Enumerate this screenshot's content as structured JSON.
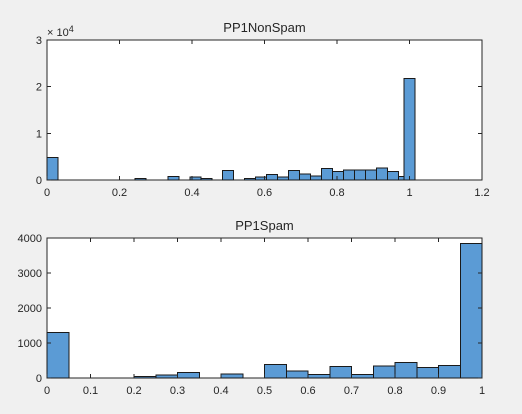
{
  "chart_data": [
    {
      "type": "bar",
      "title": "PP1NonSpam",
      "xlim": [
        0,
        1.2
      ],
      "ylim": [
        0,
        30000
      ],
      "x_ticks": [
        "0",
        "0.2",
        "0.4",
        "0.6",
        "0.8",
        "1",
        "1.2"
      ],
      "x_tick_values": [
        0,
        0.2,
        0.4,
        0.6,
        0.8,
        1.0,
        1.2
      ],
      "y_ticks": [
        "0",
        "1",
        "2",
        "3"
      ],
      "y_tick_values": [
        0,
        10000,
        20000,
        30000
      ],
      "y_exponent": "× 10^4",
      "bin_width": 0.0303,
      "bins": [
        {
          "x": 0.0,
          "count": 4800
        },
        {
          "x": 0.2424,
          "count": 300
        },
        {
          "x": 0.3333,
          "count": 800
        },
        {
          "x": 0.3939,
          "count": 600
        },
        {
          "x": 0.4242,
          "count": 300
        },
        {
          "x": 0.4848,
          "count": 2000
        },
        {
          "x": 0.5455,
          "count": 300
        },
        {
          "x": 0.5758,
          "count": 600
        },
        {
          "x": 0.6061,
          "count": 1200
        },
        {
          "x": 0.6364,
          "count": 600
        },
        {
          "x": 0.6667,
          "count": 2000
        },
        {
          "x": 0.697,
          "count": 1300
        },
        {
          "x": 0.7273,
          "count": 900
        },
        {
          "x": 0.7576,
          "count": 2500
        },
        {
          "x": 0.7879,
          "count": 1800
        },
        {
          "x": 0.8182,
          "count": 2100
        },
        {
          "x": 0.8485,
          "count": 2100
        },
        {
          "x": 0.8788,
          "count": 2100
        },
        {
          "x": 0.9091,
          "count": 2600
        },
        {
          "x": 0.9394,
          "count": 1800
        },
        {
          "x": 0.9697,
          "count": 700
        },
        {
          "x": 0.9697,
          "count": 0
        },
        {
          "x": 0.9848,
          "count": 21800
        }
      ]
    },
    {
      "type": "bar",
      "title": "PP1Spam",
      "xlim": [
        0,
        1
      ],
      "ylim": [
        0,
        4000
      ],
      "x_ticks": [
        "0",
        "0.1",
        "0.2",
        "0.3",
        "0.4",
        "0.5",
        "0.6",
        "0.7",
        "0.8",
        "0.9",
        "1"
      ],
      "x_tick_values": [
        0,
        0.1,
        0.2,
        0.3,
        0.4,
        0.5,
        0.6,
        0.7,
        0.8,
        0.9,
        1.0
      ],
      "y_ticks": [
        "0",
        "1000",
        "2000",
        "3000",
        "4000"
      ],
      "y_tick_values": [
        0,
        1000,
        2000,
        3000,
        4000
      ],
      "y_exponent": "",
      "bin_width": 0.05,
      "bins": [
        {
          "x": 0.0,
          "count": 1300
        },
        {
          "x": 0.05,
          "count": 0
        },
        {
          "x": 0.1,
          "count": 0
        },
        {
          "x": 0.15,
          "count": 0
        },
        {
          "x": 0.2,
          "count": 50
        },
        {
          "x": 0.25,
          "count": 80
        },
        {
          "x": 0.3,
          "count": 160
        },
        {
          "x": 0.35,
          "count": 0
        },
        {
          "x": 0.4,
          "count": 110
        },
        {
          "x": 0.45,
          "count": 0
        },
        {
          "x": 0.5,
          "count": 380
        },
        {
          "x": 0.55,
          "count": 200
        },
        {
          "x": 0.6,
          "count": 100
        },
        {
          "x": 0.65,
          "count": 330
        },
        {
          "x": 0.7,
          "count": 100
        },
        {
          "x": 0.75,
          "count": 350
        },
        {
          "x": 0.8,
          "count": 440
        },
        {
          "x": 0.85,
          "count": 300
        },
        {
          "x": 0.9,
          "count": 360
        },
        {
          "x": 0.95,
          "count": 3850
        }
      ]
    }
  ]
}
